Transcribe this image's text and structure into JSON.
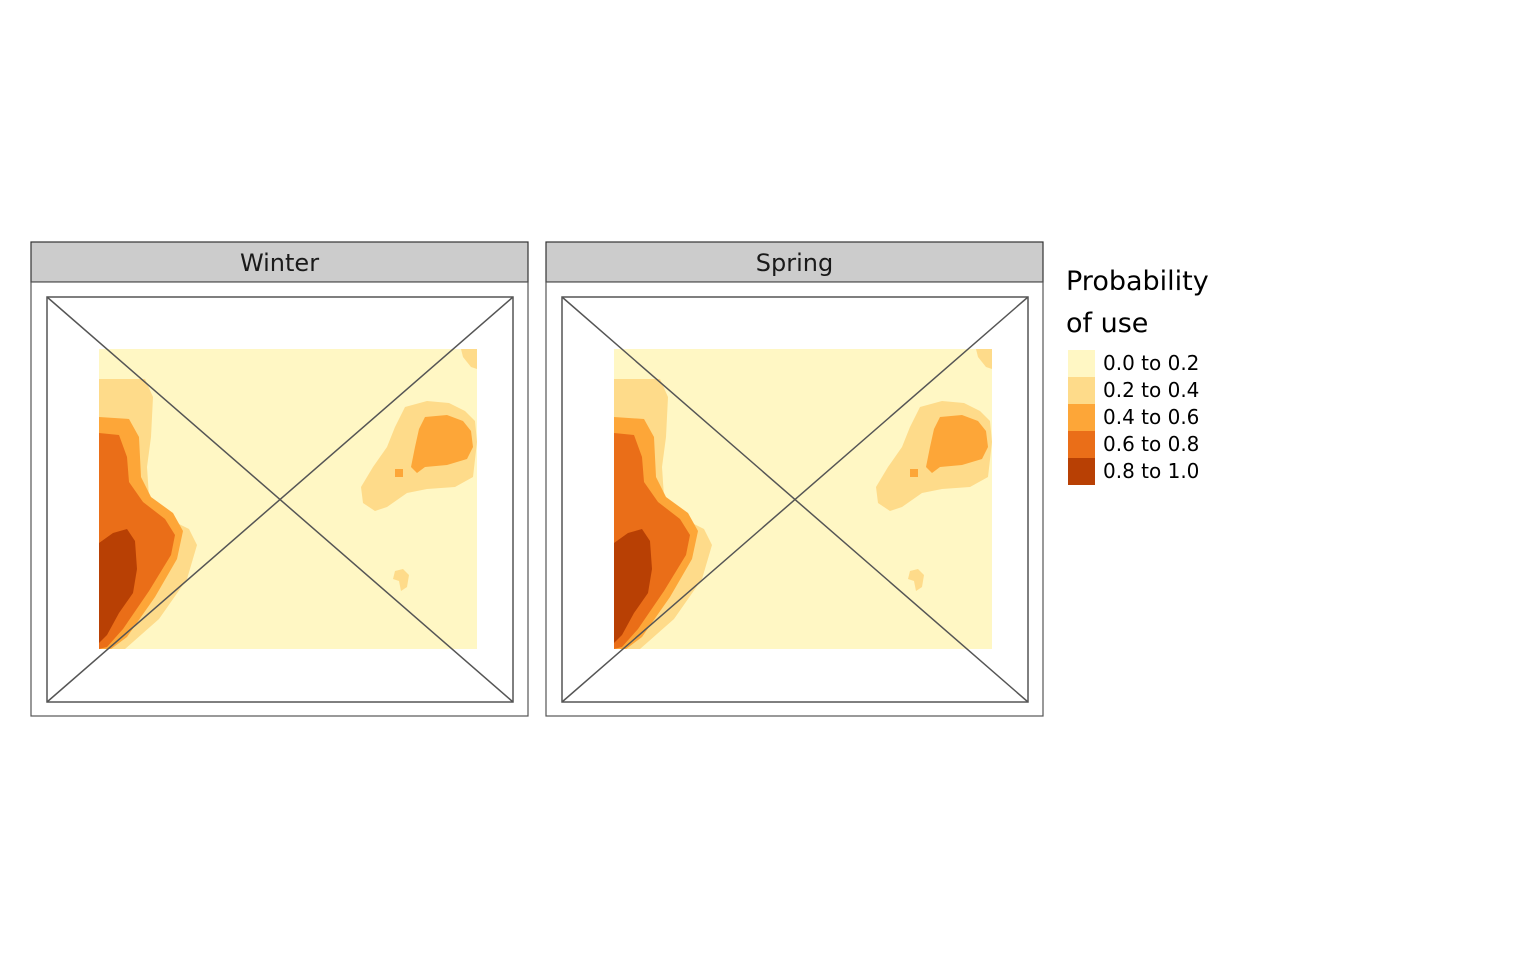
{
  "map": {
    "type": "faceted-raster-map",
    "panels": [
      {
        "label": "Winter"
      },
      {
        "label": "Spring"
      }
    ],
    "legend": {
      "title_lines": [
        "Probability",
        "of use"
      ],
      "classes": [
        {
          "label": "0.0 to 0.2",
          "color": "#fff7c4"
        },
        {
          "label": "0.2 to 0.4",
          "color": "#fedb8a"
        },
        {
          "label": "0.4 to 0.6",
          "color": "#fda638"
        },
        {
          "label": "0.6 to 0.8",
          "color": "#ea6e18"
        },
        {
          "label": "0.8 to 1.0",
          "color": "#b84004"
        }
      ],
      "placement": "right"
    },
    "colors": {
      "strip_fill": "#cccccc",
      "frame": "#555555"
    }
  }
}
